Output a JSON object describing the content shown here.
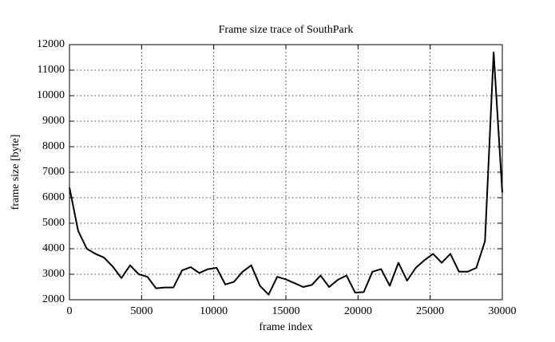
{
  "chart_data": {
    "type": "line",
    "title": "Frame size trace of SouthPark",
    "x_label": "frame index",
    "y_label": "frame size [byte]",
    "x": [
      0,
      600,
      1200,
      1800,
      2400,
      3000,
      3600,
      4200,
      4800,
      5400,
      6000,
      6600,
      7200,
      7800,
      8400,
      9000,
      9600,
      10200,
      10800,
      11400,
      12000,
      12600,
      13200,
      13800,
      14400,
      15000,
      15600,
      16200,
      16800,
      17400,
      18000,
      18600,
      19200,
      19800,
      20400,
      21000,
      21600,
      22200,
      22800,
      23400,
      24000,
      24600,
      25200,
      25800,
      26400,
      27000,
      27600,
      28200,
      28800,
      29400,
      30000
    ],
    "series": [
      {
        "name": "SouthPark",
        "color": "#000000",
        "values": [
          6400,
          4700,
          4000,
          3800,
          3650,
          3300,
          2850,
          3350,
          3000,
          2900,
          2450,
          2480,
          2480,
          3150,
          3280,
          3050,
          3200,
          3250,
          2600,
          2700,
          3100,
          3350,
          2550,
          2200,
          2900,
          2800,
          2650,
          2500,
          2580,
          2950,
          2500,
          2780,
          2950,
          2280,
          2300,
          3100,
          3200,
          2550,
          3450,
          2750,
          3250,
          3550,
          3800,
          3450,
          3800,
          3100,
          3100,
          3250,
          4300,
          11700,
          6200
        ]
      }
    ],
    "xlim": [
      0,
      30000
    ],
    "xticks": [
      0,
      5000,
      10000,
      15000,
      20000,
      25000,
      30000
    ],
    "ylim": [
      2000,
      12000
    ],
    "yticks": [
      2000,
      3000,
      4000,
      5000,
      6000,
      7000,
      8000,
      9000,
      10000,
      11000,
      12000
    ],
    "grid": true
  }
}
